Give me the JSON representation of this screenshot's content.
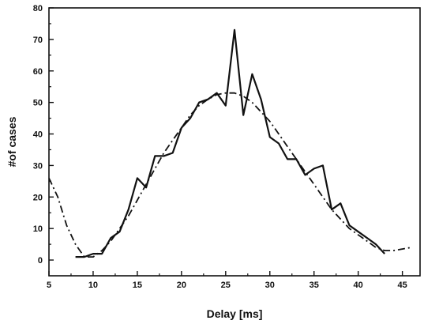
{
  "chart_data": {
    "type": "line",
    "title": "",
    "xlabel": "Delay [ms]",
    "ylabel": "#of cases",
    "xlim": [
      5,
      47
    ],
    "ylim": [
      -5,
      80
    ],
    "xticks": [
      5,
      10,
      15,
      20,
      25,
      30,
      35,
      40,
      45
    ],
    "yticks": [
      0,
      10,
      20,
      30,
      40,
      50,
      60,
      70,
      80
    ],
    "grid": false,
    "legend": "none",
    "series": [
      {
        "style": "solid",
        "color": "#111111",
        "x": [
          8,
          9,
          10,
          11,
          12,
          13,
          14,
          15,
          16,
          17,
          18,
          19,
          20,
          21,
          22,
          23,
          24,
          25,
          26,
          27,
          28,
          29,
          30,
          31,
          32,
          33,
          34,
          35,
          36,
          37,
          38,
          39,
          40,
          41,
          42,
          43
        ],
        "y": [
          1,
          1,
          2,
          2,
          7,
          9,
          16,
          26,
          23,
          33,
          33,
          34,
          42,
          45,
          50,
          51,
          53,
          49,
          73,
          46,
          59,
          51,
          39,
          37,
          32,
          32,
          27,
          29,
          30,
          16,
          18,
          11,
          9,
          7,
          5,
          2
        ]
      },
      {
        "style": "dash-dot",
        "color": "#111111",
        "x": [
          5,
          6,
          7,
          8,
          9,
          10,
          11,
          12,
          13,
          14,
          15,
          16,
          17,
          18,
          19,
          20,
          21,
          22,
          23,
          24,
          25,
          26,
          27,
          28,
          29,
          30,
          31,
          32,
          33,
          34,
          35,
          36,
          37,
          38,
          39,
          40,
          41,
          42,
          43,
          44,
          45,
          46
        ],
        "y": [
          26,
          20,
          11,
          5,
          1,
          1,
          3,
          6,
          10,
          14,
          19,
          24,
          29,
          34,
          38,
          42,
          46,
          49,
          51,
          52.5,
          53,
          53,
          52,
          50,
          47,
          44,
          40,
          36,
          32,
          28,
          24,
          20,
          16,
          13,
          10,
          8,
          6,
          4,
          3,
          3,
          3.5,
          4
        ]
      }
    ]
  }
}
